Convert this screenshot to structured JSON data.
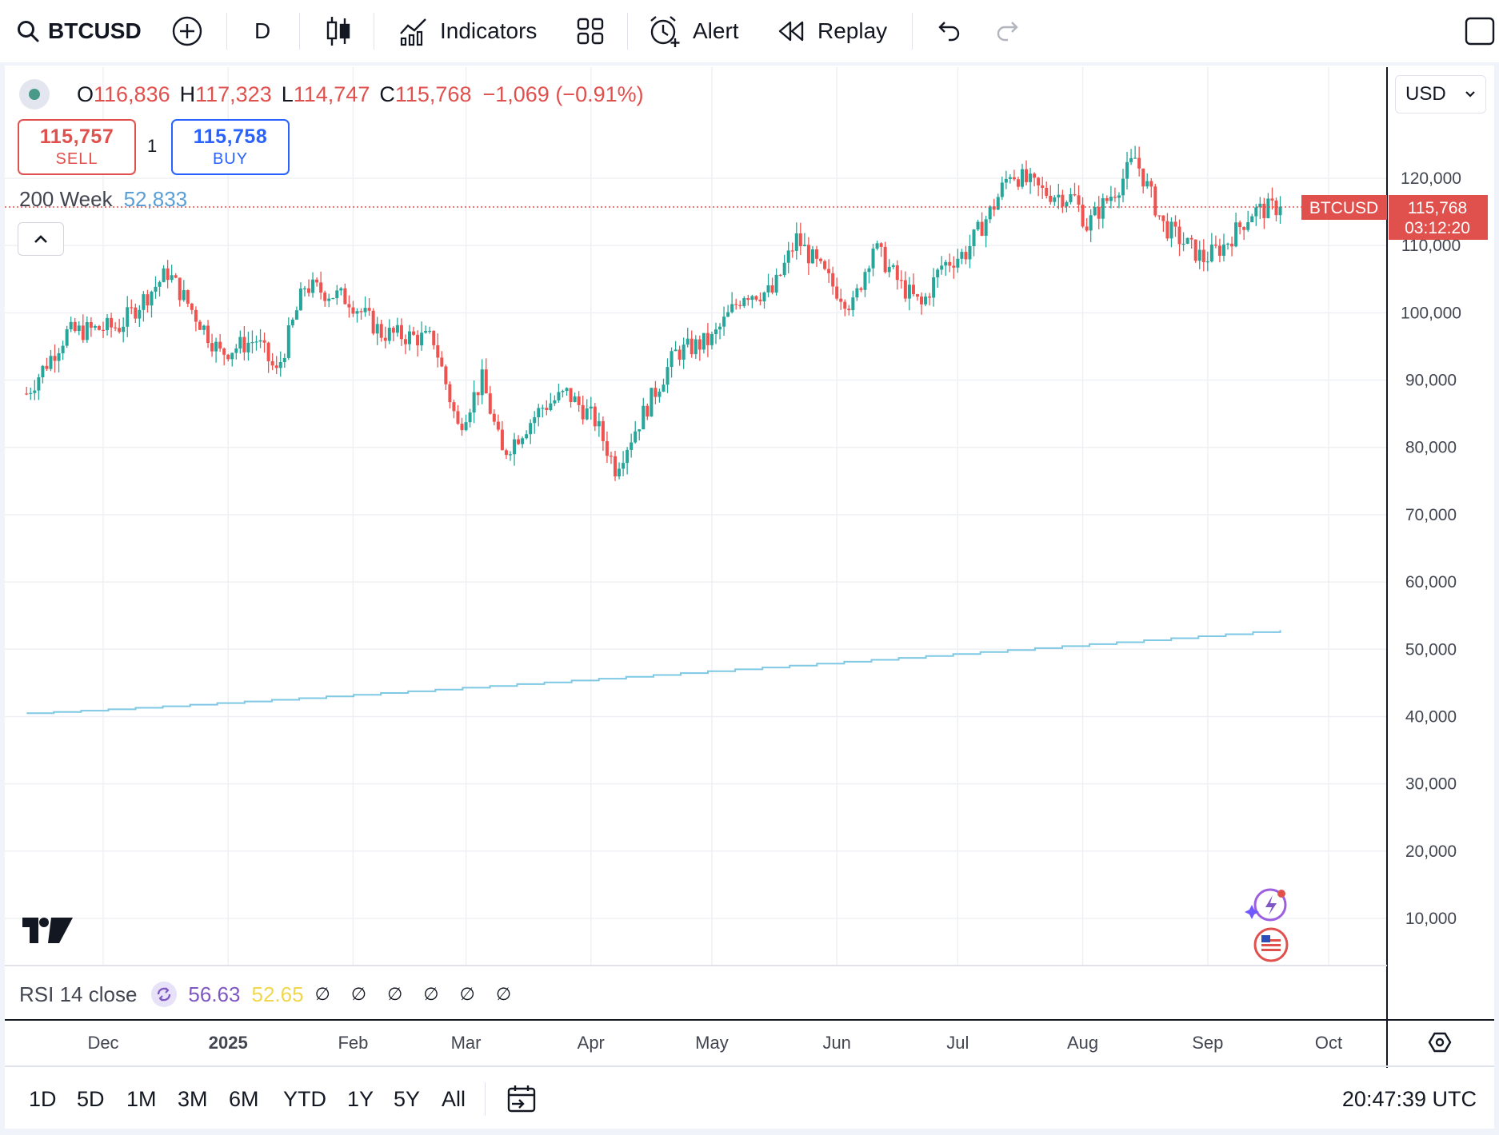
{
  "toolbar": {
    "symbol": "BTCUSD",
    "interval": "D",
    "indicators_label": "Indicators",
    "alert_label": "Alert",
    "replay_label": "Replay"
  },
  "legend": {
    "open_key": "O",
    "open": "116,836",
    "high_key": "H",
    "high": "117,323",
    "low_key": "L",
    "low": "114,747",
    "close_key": "C",
    "close": "115,768",
    "change": "−1,069 (−0.91%)"
  },
  "trade": {
    "sell_price": "115,757",
    "sell_label": "SELL",
    "buy_price": "115,758",
    "buy_label": "BUY",
    "quantity": "1"
  },
  "ma": {
    "label": "200 Week",
    "value": "52,833"
  },
  "currency": "USD",
  "price_label": {
    "symbol": "BTCUSD",
    "price": "115,768",
    "countdown": "03:12:20"
  },
  "rsi": {
    "label": "RSI 14 close",
    "value1": "56.63",
    "value2": "52.65",
    "na": "∅ ∅ ∅ ∅ ∅ ∅"
  },
  "ranges": [
    "1D",
    "5D",
    "1M",
    "3M",
    "6M",
    "YTD",
    "1Y",
    "5Y",
    "All"
  ],
  "clock": "20:47:39 UTC",
  "colors": {
    "up": "#26a69a",
    "down": "#ef5350",
    "ma": "#7ec8e3",
    "accent": "#2962ff"
  },
  "chart_data": {
    "type": "candlestick",
    "title": "",
    "x_ticks": [
      "Dec",
      "2025",
      "Feb",
      "Mar",
      "Apr",
      "May",
      "Jun",
      "Jul",
      "Aug",
      "Sep",
      "Oct"
    ],
    "y_ticks": [
      10000,
      20000,
      30000,
      40000,
      50000,
      60000,
      70000,
      80000,
      90000,
      100000,
      110000,
      120000
    ],
    "ylim": [
      3500,
      134000
    ],
    "grid": true,
    "price_series": {
      "name": "BTCUSD",
      "x": [
        "2024-11-12",
        "2024-11-22",
        "2024-12-05",
        "2024-12-17",
        "2024-12-30",
        "2025-01-08",
        "2025-01-13",
        "2025-01-20",
        "2025-01-31",
        "2025-02-08",
        "2025-02-21",
        "2025-02-27",
        "2025-03-05",
        "2025-03-10",
        "2025-03-20",
        "2025-03-26",
        "2025-04-02",
        "2025-04-07",
        "2025-04-14",
        "2025-04-22",
        "2025-05-01",
        "2025-05-09",
        "2025-05-16",
        "2025-05-22",
        "2025-05-31",
        "2025-06-05",
        "2025-06-10",
        "2025-06-17",
        "2025-06-22",
        "2025-06-27",
        "2025-07-03",
        "2025-07-10",
        "2025-07-14",
        "2025-07-22",
        "2025-07-30",
        "2025-08-02",
        "2025-08-10",
        "2025-08-14",
        "2025-08-21",
        "2025-08-31",
        "2025-09-05",
        "2025-09-12",
        "2025-09-19"
      ],
      "close": [
        88000,
        97000,
        98000,
        106000,
        94000,
        96000,
        91000,
        104000,
        102000,
        97000,
        96000,
        83000,
        90000,
        79000,
        86000,
        88000,
        84000,
        77000,
        85000,
        94000,
        96000,
        103000,
        103000,
        111000,
        104000,
        101000,
        110000,
        104000,
        101000,
        107000,
        109000,
        116000,
        121000,
        118000,
        117000,
        113000,
        119000,
        123000,
        113000,
        108000,
        110000,
        115000,
        115768
      ]
    },
    "ma_series": {
      "name": "200 Week",
      "x": [
        "2024-11-12",
        "2025-09-19"
      ],
      "values": [
        40500,
        52833
      ]
    }
  }
}
